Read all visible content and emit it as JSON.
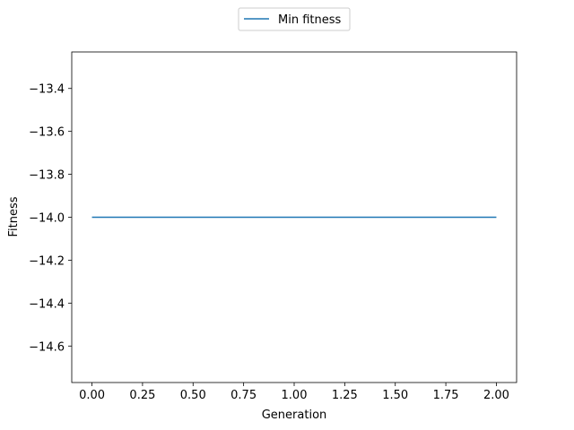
{
  "chart_data": {
    "type": "line",
    "title": "",
    "xlabel": "Generation",
    "ylabel": "Fitness",
    "xlim": [
      -0.1,
      2.1
    ],
    "ylim": [
      -14.77,
      -13.23
    ],
    "xticks": [
      0.0,
      0.25,
      0.5,
      0.75,
      1.0,
      1.25,
      1.5,
      1.75,
      2.0
    ],
    "xtick_labels": [
      "0.00",
      "0.25",
      "0.50",
      "0.75",
      "1.00",
      "1.25",
      "1.50",
      "1.75",
      "2.00"
    ],
    "yticks": [
      -13.4,
      -13.6,
      -13.8,
      -14.0,
      -14.2,
      -14.4,
      -14.6
    ],
    "ytick_labels": [
      "−13.4",
      "−13.6",
      "−13.8",
      "−14.0",
      "−14.2",
      "−14.4",
      "−14.6"
    ],
    "grid": false,
    "legend_position": "top-center, outside plot",
    "series": [
      {
        "name": "Min fitness",
        "color": "#1f77b4",
        "x": [
          0,
          1,
          2
        ],
        "y": [
          -14.0,
          -14.0,
          -14.0
        ]
      }
    ]
  }
}
